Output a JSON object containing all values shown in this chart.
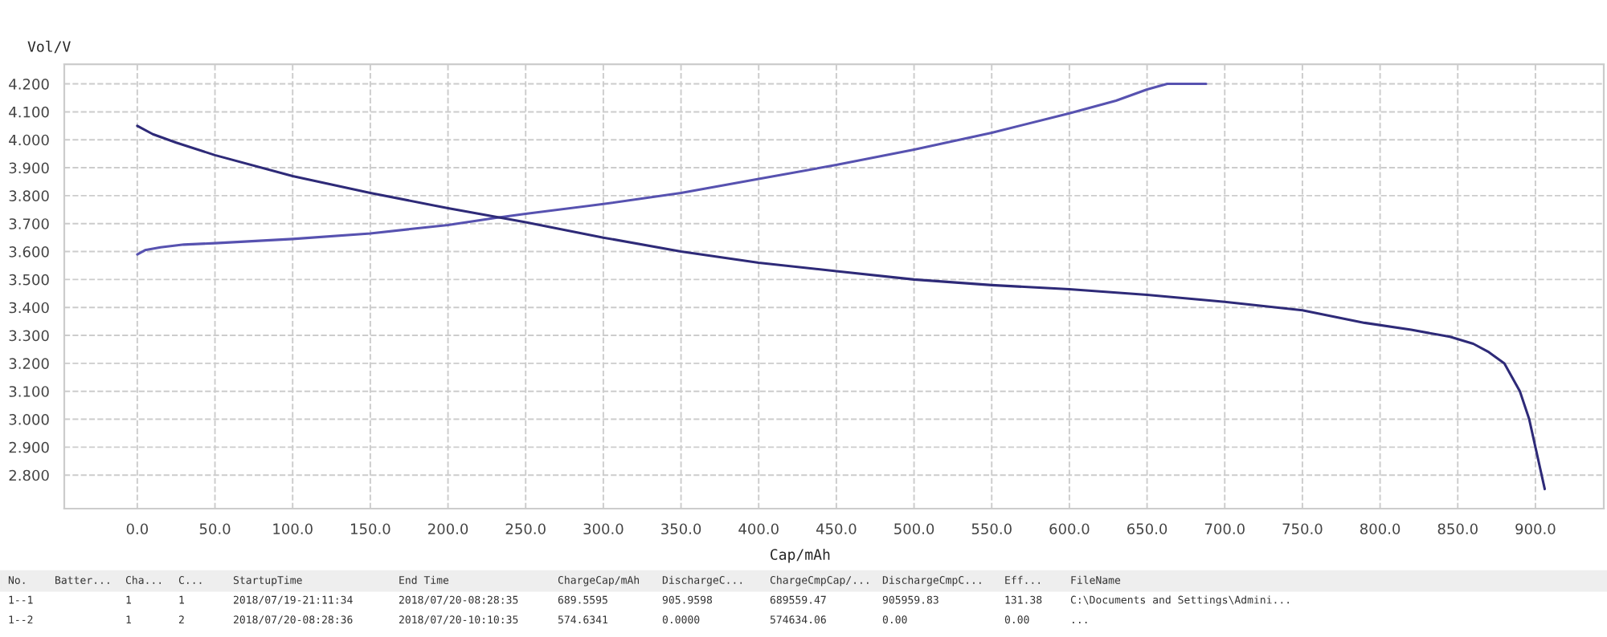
{
  "chart_data": {
    "type": "line",
    "xlabel": "Cap/mAh",
    "ylabel": "Vol/V",
    "x": [
      0,
      5,
      15,
      30,
      50,
      100,
      150,
      200,
      230,
      250,
      300,
      350,
      400,
      450,
      500,
      550,
      600,
      630,
      650,
      663,
      688
    ],
    "series": [
      {
        "color": "#5752b0",
        "values": [
          3.59,
          3.605,
          3.615,
          3.625,
          3.63,
          3.645,
          3.665,
          3.695,
          3.72,
          3.735,
          3.77,
          3.81,
          3.86,
          3.91,
          3.965,
          4.025,
          4.095,
          4.14,
          4.18,
          4.2,
          4.2
        ]
      },
      {
        "color": "#2e2a78",
        "x": [
          0,
          10,
          25,
          50,
          100,
          150,
          200,
          250,
          300,
          350,
          400,
          450,
          500,
          550,
          600,
          650,
          700,
          750,
          790,
          820,
          845,
          860,
          870,
          880,
          890,
          896,
          900,
          906
        ],
        "values": [
          4.05,
          4.02,
          3.99,
          3.945,
          3.87,
          3.81,
          3.755,
          3.705,
          3.65,
          3.6,
          3.56,
          3.53,
          3.5,
          3.48,
          3.465,
          3.445,
          3.42,
          3.39,
          3.345,
          3.32,
          3.295,
          3.27,
          3.24,
          3.2,
          3.1,
          3.0,
          2.9,
          2.75
        ]
      }
    ],
    "xlim": [
      -47,
      944
    ],
    "ylim": [
      2.68,
      4.27
    ],
    "xticks": [
      {
        "value": 0,
        "label": "0.0"
      },
      {
        "value": 50,
        "label": "50.0"
      },
      {
        "value": 100,
        "label": "100.0"
      },
      {
        "value": 150,
        "label": "150.0"
      },
      {
        "value": 200,
        "label": "200.0"
      },
      {
        "value": 250,
        "label": "250.0"
      },
      {
        "value": 300,
        "label": "300.0"
      },
      {
        "value": 350,
        "label": "350.0"
      },
      {
        "value": 400,
        "label": "400.0"
      },
      {
        "value": 450,
        "label": "450.0"
      },
      {
        "value": 500,
        "label": "500.0"
      },
      {
        "value": 550,
        "label": "550.0"
      },
      {
        "value": 600,
        "label": "600.0"
      },
      {
        "value": 650,
        "label": "650.0"
      },
      {
        "value": 700,
        "label": "700.0"
      },
      {
        "value": 750,
        "label": "750.0"
      },
      {
        "value": 800,
        "label": "800.0"
      },
      {
        "value": 850,
        "label": "850.0"
      },
      {
        "value": 900,
        "label": "900.0"
      }
    ],
    "yticks": [
      {
        "value": 2.8,
        "label": "2.800"
      },
      {
        "value": 2.9,
        "label": "2.900"
      },
      {
        "value": 3.0,
        "label": "3.000"
      },
      {
        "value": 3.1,
        "label": "3.100"
      },
      {
        "value": 3.2,
        "label": "3.200"
      },
      {
        "value": 3.3,
        "label": "3.300"
      },
      {
        "value": 3.4,
        "label": "3.400"
      },
      {
        "value": 3.5,
        "label": "3.500"
      },
      {
        "value": 3.6,
        "label": "3.600"
      },
      {
        "value": 3.7,
        "label": "3.700"
      },
      {
        "value": 3.8,
        "label": "3.800"
      },
      {
        "value": 3.9,
        "label": "3.900"
      },
      {
        "value": 4.0,
        "label": "4.000"
      },
      {
        "value": 4.1,
        "label": "4.100"
      },
      {
        "value": 4.2,
        "label": "4.200"
      }
    ],
    "grid": true,
    "line_style": "solid",
    "marker": "none",
    "annotations": [
      "No.\tBatter...\tCha...\tC...\tStartupTime\tEnd Time\tChargeCap/mAh\tDischargeC...\tChargeCmpCap/...\tDischargeCmpC...\tEff...\tFileName",
      "1--1\t\t1\t1\t2018/07/19-21:11:34\t2018/07/20-08:28:35\t689.5595\t905.9598\t689559.47\t905959.83\t131.38\tC:\\Documents and Settings\\Admini...",
      "1--2\t\t1\t2\t2018/07/20-08:28:36\t2018/07/20-10:10:35\t574.6341\t0.0000\t574634.06\t0.00\t0.00\t..."
    ]
  }
}
